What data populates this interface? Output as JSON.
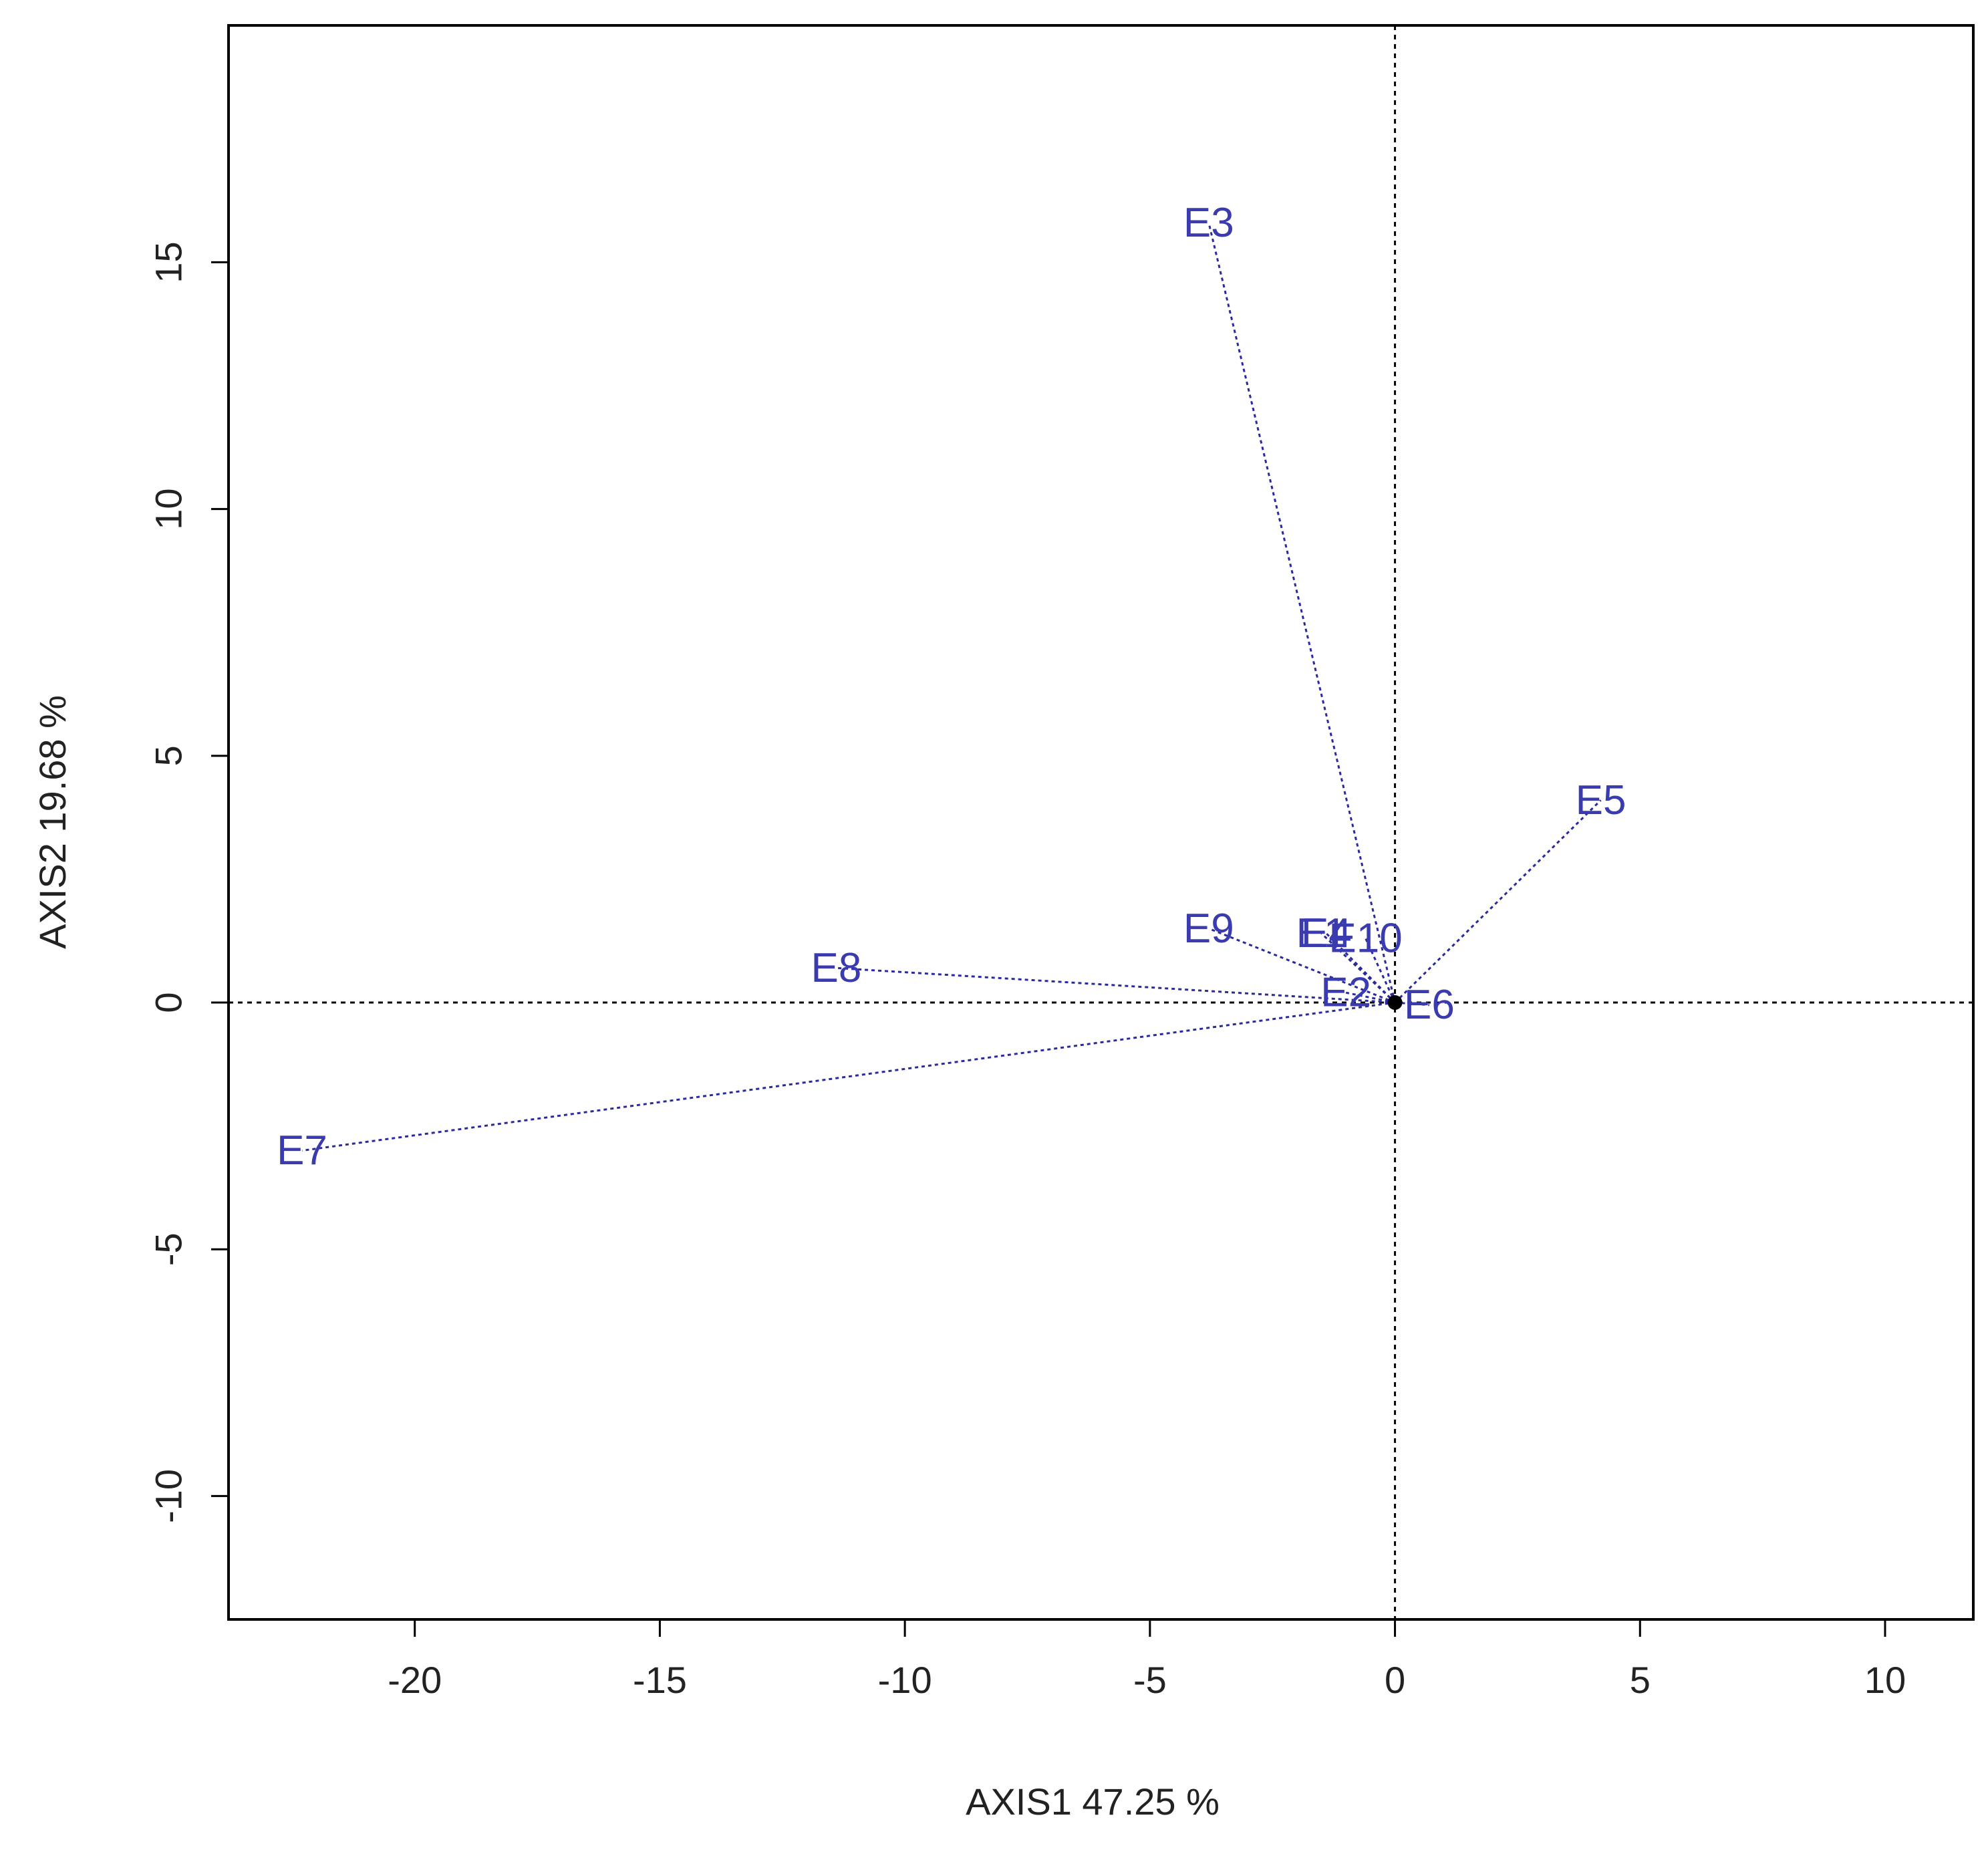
{
  "chart_data": {
    "type": "scatter",
    "xlabel": "AXIS1 47.25 %",
    "ylabel": "AXIS2 19.68 %",
    "xlim": [
      -23.8,
      11.8
    ],
    "ylim": [
      -12.5,
      19.8
    ],
    "x_ticks": [
      -20,
      -15,
      -10,
      -5,
      0,
      5,
      10
    ],
    "y_ticks": [
      -10,
      -5,
      0,
      5,
      10,
      15
    ],
    "x_tick_labels": [
      "-20",
      "-15",
      "-10",
      "-5",
      "0",
      "5",
      "10"
    ],
    "y_tick_labels": [
      "-10",
      "-5",
      "0",
      "5",
      "10",
      "15"
    ],
    "origin": [
      0,
      0
    ],
    "reference_lines": {
      "x": 0,
      "y": 0,
      "style": "dotted"
    },
    "points": [
      {
        "label": "E1",
        "x": -1.5,
        "y": 1.4
      },
      {
        "label": "E2",
        "x": -1.0,
        "y": 0.2
      },
      {
        "label": "E3",
        "x": -3.8,
        "y": 15.8
      },
      {
        "label": "E4",
        "x": -1.4,
        "y": 1.4
      },
      {
        "label": "E5",
        "x": 4.2,
        "y": 4.1
      },
      {
        "label": "E6",
        "x": 0.7,
        "y": -0.05
      },
      {
        "label": "E7",
        "x": -22.3,
        "y": -3.0
      },
      {
        "label": "E8",
        "x": -11.4,
        "y": 0.7
      },
      {
        "label": "E9",
        "x": -3.8,
        "y": 1.5
      },
      {
        "label": "E10",
        "x": -0.6,
        "y": 1.3
      }
    ],
    "grid": false,
    "legend": "none",
    "colors": {
      "labels": "#3b3bb0",
      "lines": "#2a2aa0",
      "axes": "#000000",
      "origin_marker": "#000000"
    }
  }
}
